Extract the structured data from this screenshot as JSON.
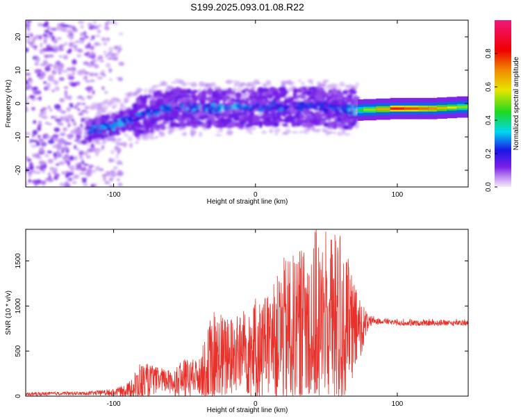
{
  "title": "S199.2025.093.01.08.R22",
  "colors": {
    "snr_line": "#e8312a",
    "frame": "#000000",
    "background": "#ffffff"
  },
  "chart_data": [
    {
      "type": "heatmap",
      "xlabel": "Height of straight line (km)",
      "ylabel": "Frequency (Hz)",
      "xlim": [
        -162,
        150
      ],
      "ylim": [
        -25,
        25
      ],
      "x_ticks": [
        -100,
        0,
        100
      ],
      "y_ticks": [
        -20,
        -10,
        0,
        10,
        20
      ],
      "colorbar": {
        "label": "Normalized spectral amplitude",
        "range": [
          0,
          1
        ],
        "ticks": [
          "0.0",
          "0.2",
          "0.4",
          "0.6",
          "0.8"
        ],
        "tick_values": [
          0.0,
          0.2,
          0.4,
          0.6,
          0.8
        ],
        "colormap": [
          "#e9d8f8",
          "#7a1fe6",
          "#1a16e6",
          "#00d8f0",
          "#1fd81f",
          "#e8e600",
          "#f08a00",
          "#f00000",
          "#f0187a"
        ]
      },
      "signal_track": {
        "x": [
          -118,
          -100,
          -80,
          -60,
          -40,
          -20,
          0,
          20,
          40,
          60,
          72,
          100,
          125,
          148
        ],
        "freq_hz": [
          -8,
          -6.5,
          -3.5,
          -1,
          -1.5,
          -1.5,
          -1,
          -1,
          -1,
          -1.5,
          -2,
          -1.5,
          -1.5,
          -1
        ],
        "amplitude": [
          0.3,
          0.35,
          0.3,
          0.3,
          0.35,
          0.35,
          0.3,
          0.3,
          0.25,
          0.3,
          0.45,
          0.85,
          0.75,
          0.55
        ]
      }
    },
    {
      "type": "line",
      "xlabel": "Height of straight line (km)",
      "ylabel": "SNR (10 * v/v)",
      "xlim": [
        -162,
        150
      ],
      "ylim": [
        0,
        1850
      ],
      "x_ticks": [
        -100,
        0,
        100
      ],
      "y_ticks": [
        0,
        500,
        1000,
        1500
      ],
      "series": [
        {
          "x": [
            -162,
            -140,
            -120,
            -100,
            -90,
            -80,
            -70,
            -60,
            -50,
            -40,
            -30,
            -20,
            -10,
            0,
            10,
            20,
            30,
            40,
            50,
            60,
            70,
            80,
            90,
            100,
            120,
            150
          ],
          "mean": [
            20,
            30,
            30,
            40,
            70,
            120,
            180,
            160,
            180,
            220,
            300,
            420,
            480,
            500,
            560,
            700,
            740,
            780,
            800,
            760,
            720,
            820,
            830,
            810,
            810,
            810
          ],
          "max": [
            40,
            50,
            50,
            80,
            150,
            400,
            330,
            300,
            430,
            420,
            980,
            900,
            950,
            1100,
            1150,
            1580,
            1650,
            1850,
            1850,
            1840,
            1250,
            900,
            870,
            860,
            860,
            860
          ]
        }
      ]
    }
  ]
}
